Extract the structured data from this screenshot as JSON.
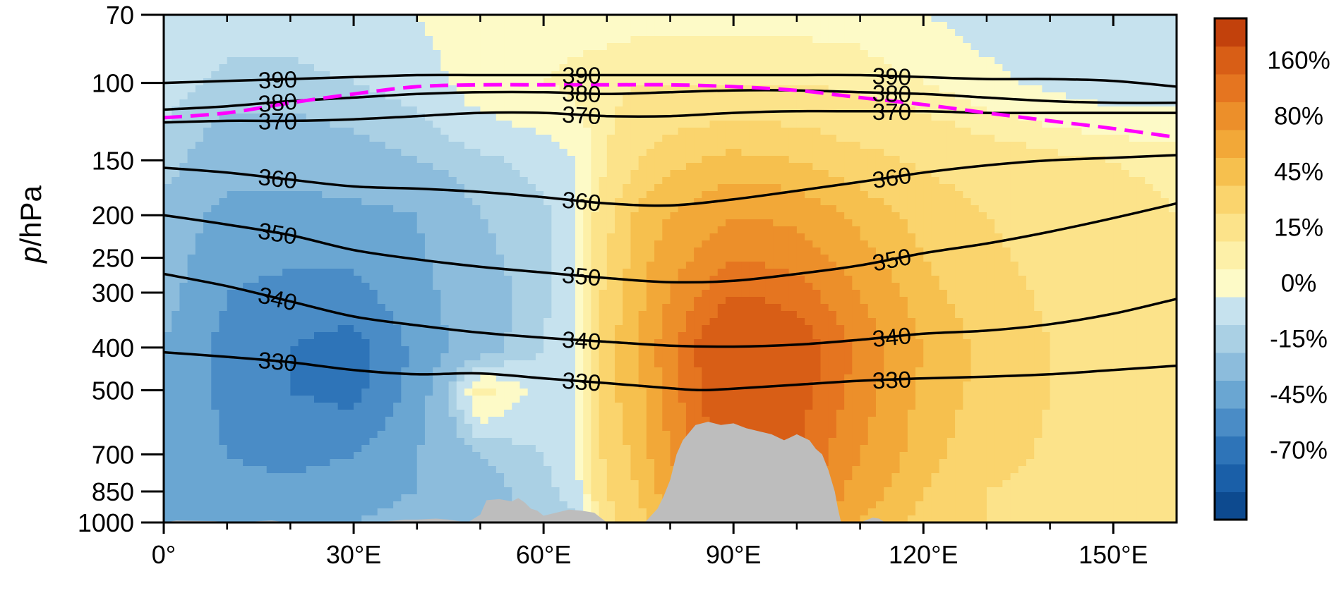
{
  "chart_data": {
    "type": "heatmap",
    "title": "",
    "ylabel_italic": "p",
    "ylabel_rest": "/hPa",
    "xlabel": "",
    "xlim": [
      0,
      160
    ],
    "ylim": [
      1000,
      70
    ],
    "y_scale": "log",
    "x_ticks": [
      {
        "value": 0,
        "label": "0°"
      },
      {
        "value": 30,
        "label": "30°E"
      },
      {
        "value": 60,
        "label": "60°E"
      },
      {
        "value": 90,
        "label": "90°E"
      },
      {
        "value": 120,
        "label": "120°E"
      },
      {
        "value": 150,
        "label": "150°E"
      }
    ],
    "y_ticks": [
      {
        "value": 70,
        "label": "70"
      },
      {
        "value": 100,
        "label": "100"
      },
      {
        "value": 150,
        "label": "150"
      },
      {
        "value": 200,
        "label": "200"
      },
      {
        "value": 250,
        "label": "250"
      },
      {
        "value": 300,
        "label": "300"
      },
      {
        "value": 400,
        "label": "400"
      },
      {
        "value": 500,
        "label": "500"
      },
      {
        "value": 700,
        "label": "700"
      },
      {
        "value": 850,
        "label": "850"
      },
      {
        "value": 1000,
        "label": "1000"
      }
    ],
    "colorbar": {
      "colors": [
        "#0d4a8f",
        "#1a5fa8",
        "#2e74b8",
        "#4a8cc6",
        "#6aa6d2",
        "#8cbcdc",
        "#aad0e4",
        "#c6e2ee",
        "#fdfac7",
        "#fdf0a8",
        "#fce38a",
        "#fad46d",
        "#f6c04e",
        "#f2a838",
        "#ec8f2a",
        "#e57520",
        "#d85e16",
        "#c2410c"
      ],
      "labels": [
        "-70%",
        "-45%",
        "-15%",
        "0%",
        "15%",
        "45%",
        "80%",
        "160%"
      ],
      "label_levels": [
        2,
        4,
        6,
        8,
        10,
        12,
        14,
        16
      ]
    },
    "field_anomaly_percent": {
      "x": [
        0,
        10,
        20,
        30,
        40,
        50,
        60,
        65,
        70,
        75,
        80,
        90,
        100,
        110,
        120,
        130,
        140,
        150,
        160
      ],
      "p": [
        1000,
        850,
        700,
        500,
        400,
        300,
        200,
        150,
        100,
        70
      ],
      "values": [
        [
          -30,
          -35,
          -35,
          -30,
          -25,
          -20,
          -15,
          -10,
          25,
          40,
          60,
          120,
          100,
          60,
          40,
          30,
          25,
          20,
          15
        ],
        [
          -30,
          -40,
          -40,
          -35,
          -30,
          -20,
          -10,
          -5,
          30,
          45,
          70,
          130,
          110,
          70,
          45,
          30,
          25,
          20,
          15
        ],
        [
          -30,
          -45,
          -50,
          -45,
          -30,
          -15,
          -8,
          -3,
          35,
          50,
          80,
          140,
          120,
          80,
          50,
          35,
          28,
          20,
          15
        ],
        [
          -30,
          -50,
          -60,
          -65,
          -40,
          12,
          -5,
          0,
          40,
          55,
          90,
          150,
          130,
          90,
          55,
          40,
          30,
          22,
          15
        ],
        [
          -30,
          -50,
          -60,
          -68,
          -40,
          -20,
          -8,
          0,
          40,
          60,
          95,
          160,
          140,
          95,
          60,
          40,
          30,
          22,
          15
        ],
        [
          -25,
          -45,
          -50,
          -50,
          -35,
          -20,
          -10,
          0,
          35,
          55,
          80,
          120,
          110,
          80,
          50,
          35,
          28,
          20,
          15
        ],
        [
          -20,
          -35,
          -35,
          -35,
          -30,
          -15,
          -10,
          0,
          25,
          50,
          60,
          80,
          75,
          55,
          40,
          30,
          25,
          20,
          15
        ],
        [
          -10,
          -25,
          -25,
          -20,
          -15,
          -10,
          -5,
          0,
          15,
          30,
          40,
          50,
          45,
          35,
          28,
          22,
          18,
          15,
          12
        ],
        [
          -5,
          -10,
          -10,
          -8,
          -5,
          5,
          8,
          10,
          12,
          15,
          15,
          15,
          15,
          12,
          8,
          2,
          -2,
          -5,
          -5
        ],
        [
          -3,
          -5,
          -5,
          -3,
          0,
          5,
          5,
          5,
          5,
          5,
          5,
          5,
          5,
          5,
          0,
          -3,
          -3,
          -3,
          -3
        ]
      ]
    },
    "theta_contours": [
      {
        "level": 330,
        "label": "330",
        "points": [
          [
            0,
            410
          ],
          [
            10,
            420
          ],
          [
            20,
            432
          ],
          [
            30,
            450
          ],
          [
            40,
            460
          ],
          [
            50,
            458
          ],
          [
            60,
            470
          ],
          [
            70,
            482
          ],
          [
            80,
            495
          ],
          [
            85,
            500
          ],
          [
            90,
            496
          ],
          [
            100,
            486
          ],
          [
            110,
            476
          ],
          [
            120,
            470
          ],
          [
            130,
            466
          ],
          [
            140,
            460
          ],
          [
            150,
            450
          ],
          [
            160,
            440
          ]
        ]
      },
      {
        "level": 340,
        "label": "340",
        "points": [
          [
            0,
            272
          ],
          [
            10,
            290
          ],
          [
            20,
            314
          ],
          [
            30,
            340
          ],
          [
            40,
            356
          ],
          [
            50,
            370
          ],
          [
            60,
            380
          ],
          [
            70,
            388
          ],
          [
            80,
            396
          ],
          [
            90,
            398
          ],
          [
            100,
            394
          ],
          [
            110,
            384
          ],
          [
            120,
            372
          ],
          [
            130,
            366
          ],
          [
            140,
            354
          ],
          [
            150,
            335
          ],
          [
            160,
            310
          ]
        ]
      },
      {
        "level": 350,
        "label": "350",
        "points": [
          [
            0,
            200
          ],
          [
            10,
            210
          ],
          [
            20,
            222
          ],
          [
            30,
            240
          ],
          [
            40,
            252
          ],
          [
            50,
            262
          ],
          [
            60,
            270
          ],
          [
            70,
            278
          ],
          [
            80,
            284
          ],
          [
            90,
            282
          ],
          [
            100,
            272
          ],
          [
            110,
            260
          ],
          [
            120,
            244
          ],
          [
            130,
            232
          ],
          [
            140,
            218
          ],
          [
            150,
            203
          ],
          [
            160,
            188
          ]
        ]
      },
      {
        "level": 360,
        "label": "360",
        "points": [
          [
            0,
            156
          ],
          [
            10,
            160
          ],
          [
            20,
            166
          ],
          [
            30,
            172
          ],
          [
            40,
            174
          ],
          [
            50,
            177
          ],
          [
            60,
            182
          ],
          [
            70,
            188
          ],
          [
            80,
            190
          ],
          [
            90,
            184
          ],
          [
            100,
            176
          ],
          [
            110,
            168
          ],
          [
            120,
            160
          ],
          [
            130,
            154
          ],
          [
            140,
            150
          ],
          [
            150,
            148
          ],
          [
            160,
            146
          ]
        ]
      },
      {
        "level": 370,
        "label": "370",
        "points": [
          [
            0,
            123
          ],
          [
            10,
            122
          ],
          [
            20,
            122
          ],
          [
            30,
            121
          ],
          [
            40,
            119
          ],
          [
            50,
            117
          ],
          [
            60,
            117
          ],
          [
            70,
            119
          ],
          [
            80,
            119
          ],
          [
            90,
            117
          ],
          [
            100,
            116
          ],
          [
            110,
            116
          ],
          [
            120,
            116
          ],
          [
            130,
            117
          ],
          [
            140,
            117
          ],
          [
            150,
            117
          ],
          [
            160,
            117
          ]
        ]
      },
      {
        "level": 380,
        "label": "380",
        "points": [
          [
            0,
            115
          ],
          [
            10,
            113
          ],
          [
            20,
            110
          ],
          [
            30,
            108
          ],
          [
            40,
            106
          ],
          [
            50,
            105
          ],
          [
            60,
            105
          ],
          [
            70,
            106
          ],
          [
            80,
            105
          ],
          [
            90,
            104
          ],
          [
            100,
            104
          ],
          [
            110,
            105
          ],
          [
            120,
            106
          ],
          [
            130,
            108
          ],
          [
            140,
            110
          ],
          [
            150,
            111
          ],
          [
            160,
            111
          ]
        ]
      },
      {
        "level": 390,
        "label": "390",
        "points": [
          [
            0,
            100
          ],
          [
            10,
            99
          ],
          [
            20,
            98
          ],
          [
            30,
            97
          ],
          [
            40,
            96
          ],
          [
            50,
            96
          ],
          [
            60,
            96
          ],
          [
            70,
            96
          ],
          [
            80,
            96
          ],
          [
            90,
            96
          ],
          [
            100,
            96
          ],
          [
            110,
            96
          ],
          [
            120,
            97
          ],
          [
            130,
            98
          ],
          [
            140,
            98
          ],
          [
            150,
            99
          ],
          [
            160,
            102
          ]
        ]
      }
    ],
    "tropopause": {
      "points": [
        [
          0,
          120
        ],
        [
          10,
          117
        ],
        [
          20,
          111
        ],
        [
          30,
          106
        ],
        [
          40,
          102
        ],
        [
          50,
          101
        ],
        [
          60,
          101
        ],
        [
          70,
          101
        ],
        [
          80,
          101
        ],
        [
          90,
          102
        ],
        [
          100,
          104
        ],
        [
          110,
          108
        ],
        [
          120,
          112
        ],
        [
          130,
          117
        ],
        [
          140,
          122
        ],
        [
          150,
          127
        ],
        [
          160,
          133
        ]
      ]
    },
    "topography": {
      "points": [
        [
          0,
          1000
        ],
        [
          2,
          990
        ],
        [
          8,
          993
        ],
        [
          12,
          1000
        ],
        [
          14,
          995
        ],
        [
          17,
          990
        ],
        [
          20,
          1000
        ],
        [
          34,
          1000
        ],
        [
          36,
          992
        ],
        [
          38,
          985
        ],
        [
          40,
          985
        ],
        [
          43,
          980
        ],
        [
          45,
          985
        ],
        [
          48,
          1000
        ],
        [
          50,
          960
        ],
        [
          51,
          890
        ],
        [
          53,
          885
        ],
        [
          55,
          895
        ],
        [
          56,
          880
        ],
        [
          57,
          900
        ],
        [
          58,
          930
        ],
        [
          59,
          940
        ],
        [
          60,
          965
        ],
        [
          62,
          950
        ],
        [
          64,
          935
        ],
        [
          66,
          940
        ],
        [
          68,
          950
        ],
        [
          70,
          1000
        ],
        [
          76,
          1000
        ],
        [
          78,
          930
        ],
        [
          79,
          870
        ],
        [
          80,
          800
        ],
        [
          81,
          700
        ],
        [
          82,
          650
        ],
        [
          84,
          600
        ],
        [
          86,
          590
        ],
        [
          88,
          600
        ],
        [
          90,
          595
        ],
        [
          92,
          610
        ],
        [
          94,
          620
        ],
        [
          96,
          630
        ],
        [
          98,
          650
        ],
        [
          99,
          640
        ],
        [
          100,
          630
        ],
        [
          102,
          650
        ],
        [
          103,
          680
        ],
        [
          104,
          700
        ],
        [
          105,
          760
        ],
        [
          106,
          850
        ],
        [
          106.5,
          930
        ],
        [
          107,
          1000
        ],
        [
          110,
          1000
        ],
        [
          112,
          975
        ],
        [
          113,
          980
        ],
        [
          114,
          1000
        ],
        [
          160,
          1000
        ]
      ]
    }
  }
}
